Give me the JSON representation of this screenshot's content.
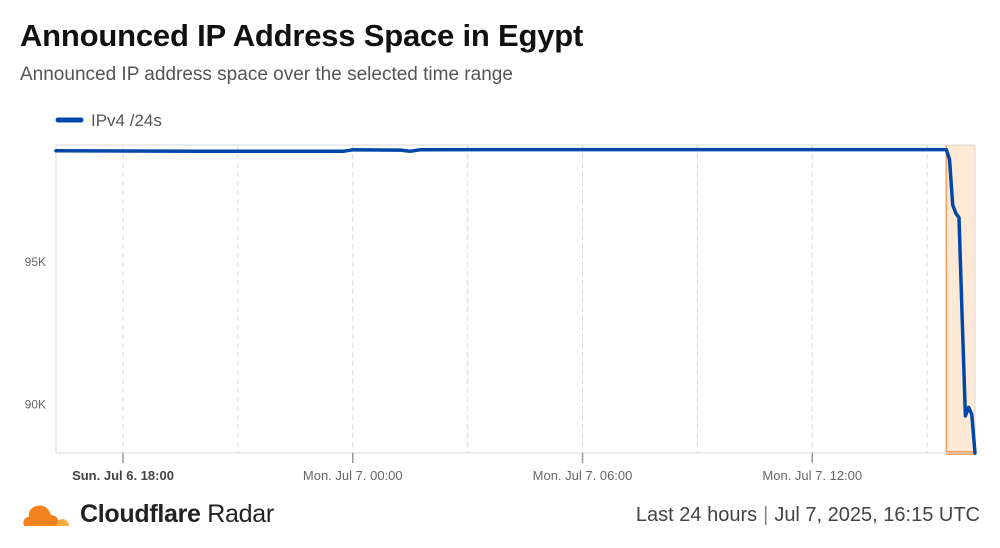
{
  "header": {
    "title": "Announced IP Address Space in Egypt",
    "subtitle": "Announced IP address space over the selected time range"
  },
  "footer": {
    "brand_strong": "Cloudflare",
    "brand_rest": "Radar",
    "range_label": "Last 24 hours",
    "timestamp": "Jul 7, 2025, 16:15 UTC"
  },
  "colors": {
    "series": "#0047a8",
    "highlight_fill": "#fde9d6",
    "highlight_edge": "#f4a261",
    "grid": "#d9d9d9"
  },
  "icons": {
    "logo": "cloudflare-cloud-icon"
  },
  "chart_data": {
    "type": "line",
    "title": "Announced IP Address Space in Egypt",
    "subtitle": "Announced IP address space over the selected time range",
    "xlabel": "",
    "ylabel": "",
    "y_ticks": [
      {
        "value": 95000,
        "label": "95K"
      },
      {
        "value": 90000,
        "label": "90K"
      }
    ],
    "ylim": [
      88300,
      99100
    ],
    "xlim": [
      "2025-07-06 16:15",
      "2025-07-07 16:15"
    ],
    "x_ticks": [
      {
        "time": "2025-07-06 18:00",
        "label": "Sun, Jul 6, 18:00",
        "bold": true
      },
      {
        "time": "2025-07-07 00:00",
        "label": "Mon, Jul 7, 00:00",
        "bold": false
      },
      {
        "time": "2025-07-07 06:00",
        "label": "Mon, Jul 7, 06:00",
        "bold": false
      },
      {
        "time": "2025-07-07 12:00",
        "label": "Mon, Jul 7, 12:00",
        "bold": false
      }
    ],
    "minor_grid": [
      "2025-07-06 21:00",
      "2025-07-07 03:00",
      "2025-07-07 09:00",
      "2025-07-07 15:00"
    ],
    "legend": {
      "position": "top-left"
    },
    "grid": true,
    "highlight_range": [
      "2025-07-07 15:30",
      "2025-07-07 16:15"
    ],
    "series": [
      {
        "name": "IPv4 /24s",
        "points": [
          [
            "2025-07-06 16:15",
            98900
          ],
          [
            "2025-07-06 20:00",
            98880
          ],
          [
            "2025-07-06 23:45",
            98880
          ],
          [
            "2025-07-07 00:00",
            98930
          ],
          [
            "2025-07-07 01:15",
            98920
          ],
          [
            "2025-07-07 01:30",
            98880
          ],
          [
            "2025-07-07 01:45",
            98930
          ],
          [
            "2025-07-07 03:30",
            98940
          ],
          [
            "2025-07-07 09:00",
            98940
          ],
          [
            "2025-07-07 15:30",
            98940
          ],
          [
            "2025-07-07 15:35",
            98600
          ],
          [
            "2025-07-07 15:40",
            97000
          ],
          [
            "2025-07-07 15:45",
            96700
          ],
          [
            "2025-07-07 15:50",
            96550
          ],
          [
            "2025-07-07 15:55",
            93000
          ],
          [
            "2025-07-07 16:00",
            89600
          ],
          [
            "2025-07-07 16:05",
            89900
          ],
          [
            "2025-07-07 16:10",
            89650
          ],
          [
            "2025-07-07 16:15",
            88300
          ]
        ]
      }
    ]
  }
}
